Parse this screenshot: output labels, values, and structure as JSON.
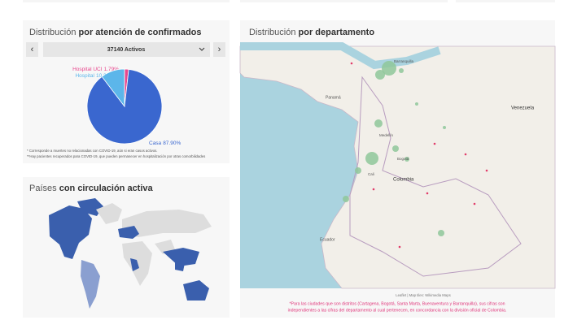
{
  "left_top": {
    "title_normal": "Distribución",
    "title_bold": "por atención de confirmados",
    "selector": {
      "prev": "‹",
      "value": "37140 Activos",
      "next": "›"
    },
    "notes": [
      "* Corresponde a muertes no relacionadas con COVID-19, aún si eran casos activos.",
      "**Hay pacientes recuperados para COVID-19, que pueden permanecer en hospitalización por otras comorbilidades"
    ]
  },
  "chart_data": {
    "type": "pie",
    "categories": [
      "Hospital UCI",
      "Casa",
      "Hospital"
    ],
    "values": [
      1.79,
      87.9,
      10.31
    ],
    "value_labels": [
      "1.79%",
      "87.90%",
      "10.31%"
    ],
    "colors": [
      "#e8478d",
      "#3a67cf",
      "#5cb6ea"
    ]
  },
  "left_bottom": {
    "title_normal": "Países",
    "title_bold": "con circulación activa"
  },
  "right": {
    "title_normal": "Distribución",
    "title_bold": "por departamento",
    "map_labels": [
      "Venezuela",
      "Colombia",
      "Panamá",
      "Ecuador",
      "Medellín",
      "Bogotá",
      "Cali",
      "Barranquilla"
    ],
    "attribution": "Leaflet | Map tiles: Wikimedia Maps",
    "footnote": [
      "*Para las ciudades que son distritos (Cartagena, Bogotá, Santa Marta, Buenaventura y Barranquilla), sus cifras son",
      "independientes a las cifras del departamento al cual pertenecen, en concordancia con la división oficial de Colombia."
    ]
  }
}
